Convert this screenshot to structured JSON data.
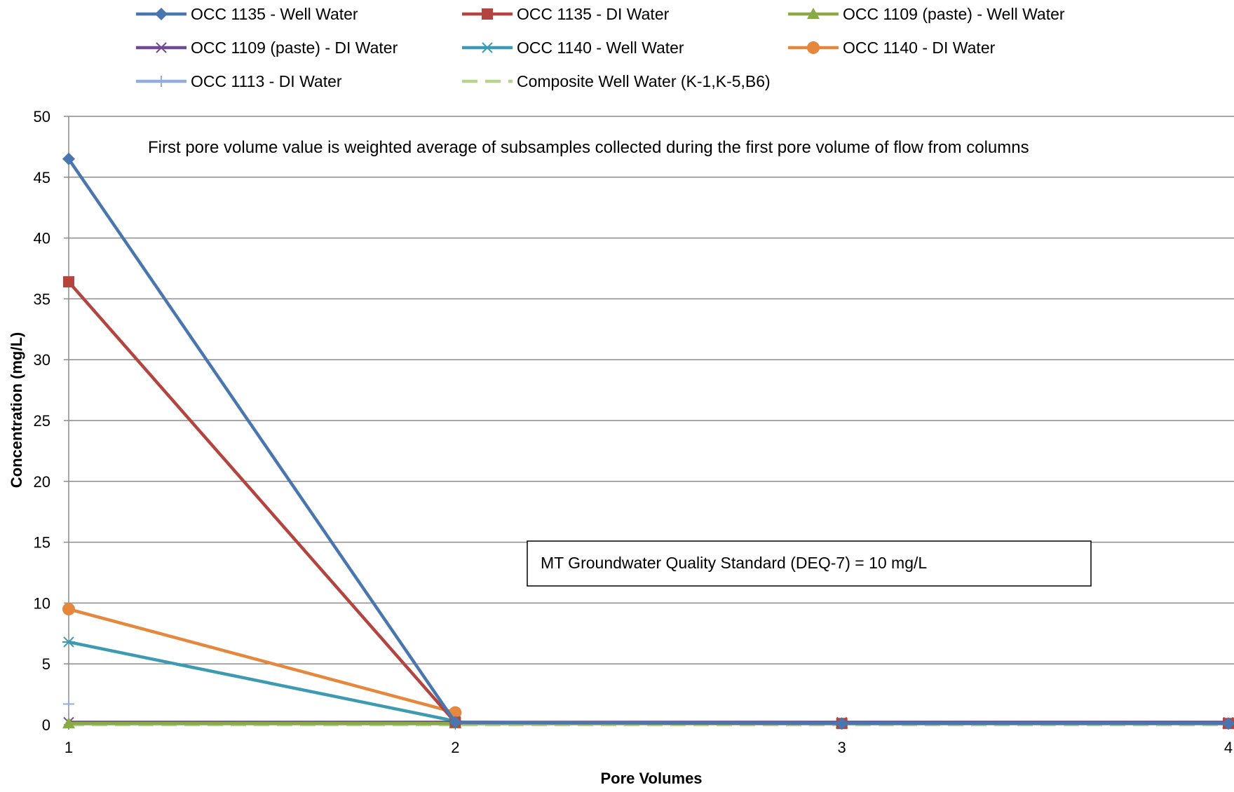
{
  "chart_data": {
    "type": "line",
    "title": "",
    "xlabel": "Pore Volumes",
    "ylabel": "Concentration (mg/L)",
    "x": [
      1,
      2,
      3,
      4
    ],
    "x_tick_labels": [
      "1",
      "2",
      "3",
      "4"
    ],
    "ylim": [
      0,
      50
    ],
    "y_ticks": [
      0,
      5,
      10,
      15,
      20,
      25,
      30,
      35,
      40,
      45,
      50
    ],
    "grid": true,
    "legend_position": "top",
    "annotations": [
      "First pore volume value is weighted average of subsamples collected during the first pore volume of flow from columns"
    ],
    "standard_label": "MT Groundwater Quality Standard (DEQ-7)  = 10 mg/L",
    "series": [
      {
        "name": "OCC 1135 - Well Water",
        "values": [
          46.5,
          0.2,
          0.1,
          0.1
        ],
        "color": "#4a76b0",
        "marker": "diamond",
        "dash": "solid"
      },
      {
        "name": "OCC 1135 - DI Water",
        "values": [
          36.4,
          0.2,
          0.1,
          0.1
        ],
        "color": "#b3443f",
        "marker": "square",
        "dash": "solid"
      },
      {
        "name": "OCC 1109 (paste) - Well Water",
        "values": [
          0.1,
          0.1,
          0.1,
          0.1
        ],
        "color": "#8aaa45",
        "marker": "triangle",
        "dash": "solid"
      },
      {
        "name": "OCC 1109 (paste) - DI Water",
        "values": [
          0.2,
          0.2,
          0.2,
          0.2
        ],
        "color": "#6f4c92",
        "marker": "x",
        "dash": "solid"
      },
      {
        "name": "OCC 1140  - Well  Water",
        "values": [
          6.8,
          0.3,
          null,
          null
        ],
        "color": "#3c9ab1",
        "marker": "star",
        "dash": "solid"
      },
      {
        "name": "OCC 1140  - DI  Water",
        "values": [
          9.5,
          1.0,
          null,
          null
        ],
        "color": "#e5873d",
        "marker": "circle",
        "dash": "solid"
      },
      {
        "name": "OCC 1113  - DI  Water",
        "values": [
          1.7,
          null,
          null,
          null
        ],
        "color": "#93aedc",
        "marker": "plus",
        "dash": "solid"
      },
      {
        "name": "Composite Well Water (K-1,K-5,B6)",
        "values": [
          0.0,
          0.0,
          0.0,
          0.0
        ],
        "color": "#b7d48f",
        "marker": "none",
        "dash": "dashed"
      }
    ]
  }
}
